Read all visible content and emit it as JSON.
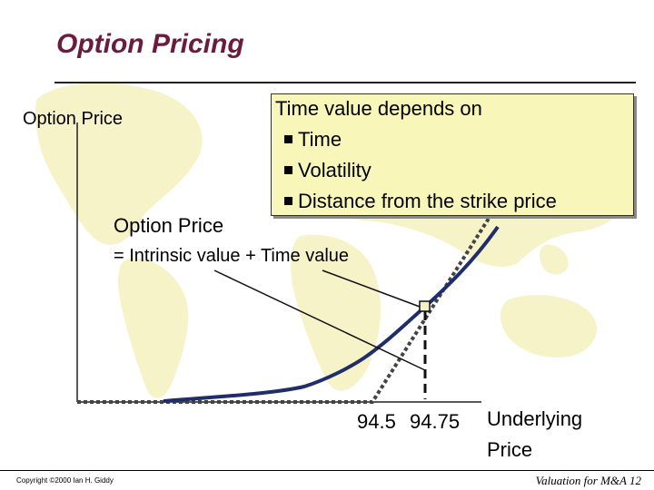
{
  "slide": {
    "title": "Option Pricing",
    "y_axis_label": "Option Price",
    "callout": {
      "heading": "Time value depends on",
      "bullets": [
        "Time",
        "Volatility",
        "Distance from the strike price"
      ]
    },
    "formula": {
      "line1": "Option Price",
      "line2": "= Intrinsic value + Time value"
    },
    "x_ticks": [
      "94.5",
      "94.75"
    ],
    "x_axis_label": {
      "line1": "Underlying",
      "line2": "Price"
    },
    "copyright": "Copyright ©2000 Ian H. Giddy",
    "footer": "Valuation for M&A  12"
  },
  "colors": {
    "title": "#6b1b3f",
    "option_price_curve": "#1f2d6b",
    "intrinsic_value_line": "#444444",
    "callout_background": "#f8f6b8",
    "map_background": "#f6f3c8"
  }
}
